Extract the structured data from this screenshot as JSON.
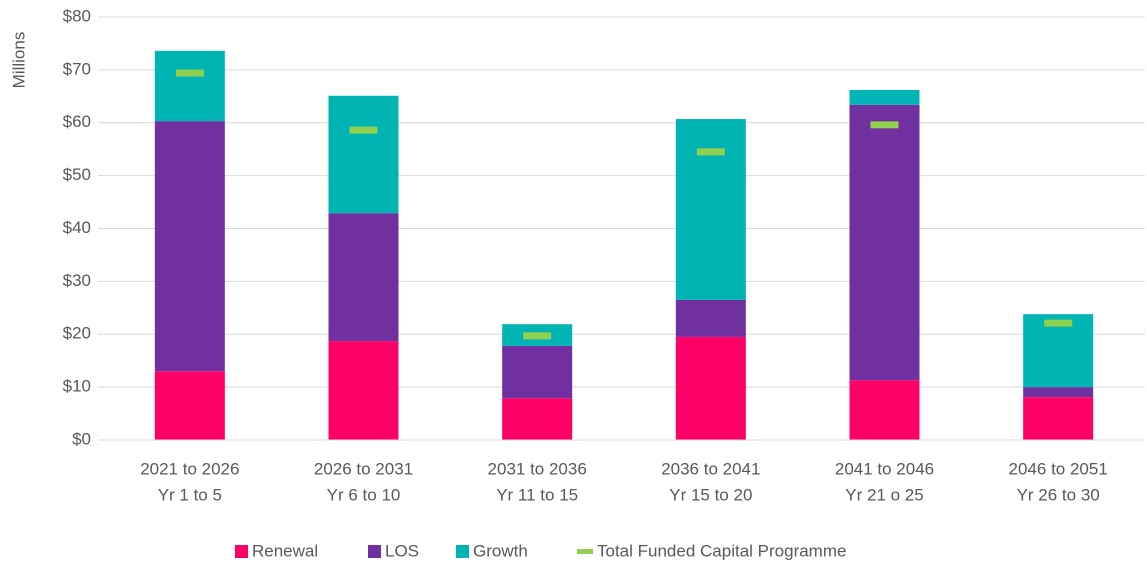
{
  "chart_data": {
    "type": "bar",
    "stacked": true,
    "y_label": "Millions",
    "categories": [
      [
        "2021 to 2026",
        "Yr 1 to 5"
      ],
      [
        "2026 to 2031",
        "Yr 6 to 10"
      ],
      [
        "2031 to 2036",
        "Yr 11 to 15"
      ],
      [
        "2036 to 2041",
        "Yr 15 to 20"
      ],
      [
        "2041 to 2046",
        "Yr 21 o 25"
      ],
      [
        "2046 to 2051",
        "Yr 26 to 30"
      ]
    ],
    "series": [
      {
        "name": "Renewal",
        "color": "#ff0066",
        "values": [
          13.0,
          18.7,
          7.9,
          19.5,
          11.3,
          8.1
        ]
      },
      {
        "name": "LOS",
        "color": "#7030a0",
        "values": [
          47.3,
          24.2,
          9.9,
          7.0,
          52.1,
          1.9
        ]
      },
      {
        "name": "Growth",
        "color": "#00b4b4",
        "values": [
          13.3,
          22.2,
          4.1,
          34.2,
          2.8,
          13.8
        ]
      }
    ],
    "markers": {
      "name": "Total Funded Capital Programme",
      "color": "#92d050",
      "values": [
        69.4,
        58.6,
        19.7,
        54.5,
        59.6,
        22.1
      ]
    },
    "ylim": [
      0,
      80
    ],
    "yticks": [
      {
        "value": 0,
        "label": "$0"
      },
      {
        "value": 10,
        "label": "$10"
      },
      {
        "value": 20,
        "label": "$20"
      },
      {
        "value": 30,
        "label": "$30"
      },
      {
        "value": 40,
        "label": "$40"
      },
      {
        "value": 50,
        "label": "$50"
      },
      {
        "value": 60,
        "label": "$60"
      },
      {
        "value": 70,
        "label": "$70"
      },
      {
        "value": 80,
        "label": "$80"
      }
    ],
    "grid": true,
    "legend": "bottom"
  }
}
